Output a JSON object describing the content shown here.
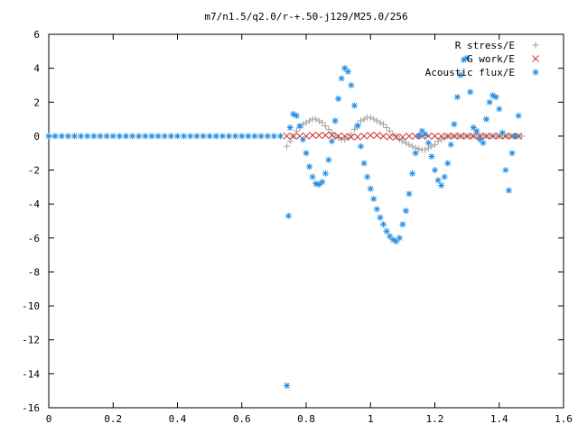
{
  "chart_data": {
    "type": "scatter",
    "title": "m7/n1.5/q2.0/r-+.50-j129/M25.0/256",
    "xlabel": "",
    "ylabel": "",
    "xlim": [
      0,
      1.6
    ],
    "ylim": [
      -16,
      6
    ],
    "x_ticks": [
      "0",
      "0.2",
      "0.4",
      "0.6",
      "0.8",
      "1",
      "1.2",
      "1.4",
      "1.6"
    ],
    "y_ticks": [
      "6",
      "4",
      "2",
      "0",
      "-2",
      "-4",
      "-6",
      "-8",
      "-10",
      "-12",
      "-14",
      "-16"
    ],
    "grid": false,
    "legend_position": "top-right",
    "series": [
      {
        "name": "R stress/E",
        "marker": "plus",
        "color": "#a0a0a0",
        "x": [
          0.74,
          0.75,
          0.76,
          0.77,
          0.78,
          0.79,
          0.8,
          0.81,
          0.82,
          0.83,
          0.84,
          0.85,
          0.86,
          0.87,
          0.88,
          0.89,
          0.9,
          0.91,
          0.92,
          0.93,
          0.94,
          0.95,
          0.96,
          0.97,
          0.98,
          0.99,
          1.0,
          1.01,
          1.02,
          1.03,
          1.04,
          1.05,
          1.06,
          1.07,
          1.08,
          1.09,
          1.1,
          1.11,
          1.12,
          1.13,
          1.14,
          1.15,
          1.16,
          1.17,
          1.18,
          1.19,
          1.2,
          1.21,
          1.22,
          1.23,
          1.24,
          1.25,
          1.26,
          1.27,
          1.28,
          1.29,
          1.3,
          1.31,
          1.32,
          1.33,
          1.34,
          1.35,
          1.36,
          1.37,
          1.38,
          1.39,
          1.4,
          1.41,
          1.42,
          1.43,
          1.44,
          1.45,
          1.46,
          1.47
        ],
        "y": [
          -0.6,
          -0.3,
          0.0,
          0.3,
          0.5,
          0.7,
          0.8,
          0.9,
          1.0,
          1.0,
          0.9,
          0.8,
          0.6,
          0.4,
          0.2,
          0.0,
          -0.1,
          -0.2,
          -0.2,
          -0.1,
          0.1,
          0.4,
          0.7,
          0.9,
          1.0,
          1.1,
          1.1,
          1.0,
          0.9,
          0.8,
          0.7,
          0.5,
          0.3,
          0.1,
          0.0,
          -0.2,
          -0.3,
          -0.4,
          -0.5,
          -0.6,
          -0.7,
          -0.75,
          -0.8,
          -0.8,
          -0.7,
          -0.6,
          -0.5,
          -0.3,
          -0.2,
          -0.1,
          0.0,
          0.0,
          0.0,
          0.0,
          0.0,
          0.0,
          0.0,
          0.0,
          0.0,
          0.0,
          0.0,
          0.0,
          0.0,
          0.0,
          0.0,
          0.0,
          0.0,
          0.0,
          0.0,
          0.0,
          0.0,
          0.0,
          0.0,
          0.0
        ]
      },
      {
        "name": "G work/E",
        "marker": "cross",
        "color": "#d03030",
        "x": [
          0.74,
          0.76,
          0.78,
          0.8,
          0.82,
          0.84,
          0.86,
          0.88,
          0.9,
          0.92,
          0.94,
          0.96,
          0.98,
          1.0,
          1.02,
          1.04,
          1.06,
          1.08,
          1.1,
          1.12,
          1.14,
          1.16,
          1.18,
          1.2,
          1.22,
          1.24,
          1.26,
          1.28,
          1.3,
          1.32,
          1.34,
          1.36,
          1.38,
          1.4,
          1.42,
          1.44,
          1.46
        ],
        "y": [
          0.0,
          0.0,
          0.0,
          0.0,
          0.05,
          0.05,
          0.05,
          0.05,
          0.0,
          0.0,
          -0.05,
          -0.05,
          0.0,
          0.05,
          0.05,
          0.0,
          -0.05,
          -0.05,
          -0.05,
          0.0,
          0.0,
          0.0,
          0.0,
          0.0,
          0.0,
          0.0,
          0.0,
          0.0,
          0.0,
          0.0,
          0.0,
          0.0,
          0.0,
          0.0,
          0.0,
          0.0,
          0.0
        ]
      },
      {
        "name": "Acoustic flux/E",
        "marker": "star",
        "color": "#1e8ce6",
        "x": [
          0.0,
          0.02,
          0.04,
          0.06,
          0.08,
          0.1,
          0.12,
          0.14,
          0.16,
          0.18,
          0.2,
          0.22,
          0.24,
          0.26,
          0.28,
          0.3,
          0.32,
          0.34,
          0.36,
          0.38,
          0.4,
          0.42,
          0.44,
          0.46,
          0.48,
          0.5,
          0.52,
          0.54,
          0.56,
          0.58,
          0.6,
          0.62,
          0.64,
          0.66,
          0.68,
          0.7,
          0.72,
          0.74,
          0.745,
          0.75,
          0.76,
          0.77,
          0.78,
          0.79,
          0.8,
          0.81,
          0.82,
          0.83,
          0.84,
          0.85,
          0.86,
          0.87,
          0.88,
          0.89,
          0.9,
          0.91,
          0.92,
          0.93,
          0.94,
          0.95,
          0.96,
          0.97,
          0.98,
          0.99,
          1.0,
          1.01,
          1.02,
          1.03,
          1.04,
          1.05,
          1.06,
          1.07,
          1.08,
          1.09,
          1.1,
          1.11,
          1.12,
          1.13,
          1.14,
          1.15,
          1.16,
          1.17,
          1.18,
          1.19,
          1.2,
          1.21,
          1.22,
          1.23,
          1.24,
          1.25,
          1.26,
          1.27,
          1.28,
          1.29,
          1.3,
          1.31,
          1.32,
          1.33,
          1.34,
          1.35,
          1.36,
          1.37,
          1.38,
          1.39,
          1.4,
          1.41,
          1.42,
          1.43,
          1.44,
          1.45,
          1.46
        ],
        "y": [
          0,
          0,
          0,
          0,
          0,
          0,
          0,
          0,
          0,
          0,
          0,
          0,
          0,
          0,
          0,
          0,
          0,
          0,
          0,
          0,
          0,
          0,
          0,
          0,
          0,
          0,
          0,
          0,
          0,
          0,
          0,
          0,
          0,
          0,
          0,
          0,
          0,
          -14.7,
          -4.7,
          0.5,
          1.3,
          1.2,
          0.6,
          -0.2,
          -1.0,
          -1.8,
          -2.4,
          -2.8,
          -2.85,
          -2.7,
          -2.2,
          -1.4,
          -0.3,
          0.9,
          2.2,
          3.4,
          4.0,
          3.8,
          3.0,
          1.8,
          0.6,
          -0.6,
          -1.6,
          -2.4,
          -3.1,
          -3.7,
          -4.3,
          -4.8,
          -5.2,
          -5.6,
          -5.9,
          -6.1,
          -6.2,
          -6.0,
          -5.2,
          -4.4,
          -3.4,
          -2.2,
          -1.0,
          0.0,
          0.3,
          0.1,
          -0.4,
          -1.2,
          -2.0,
          -2.6,
          -2.9,
          -2.4,
          -1.6,
          -0.5,
          0.7,
          2.3,
          3.6,
          4.5,
          4.6,
          2.6,
          0.5,
          0.3,
          -0.2,
          -0.4,
          1.0,
          2.0,
          2.4,
          2.3,
          1.6,
          0.2,
          -2.0,
          -3.2,
          -1.0,
          0.0,
          1.2
        ]
      }
    ]
  }
}
